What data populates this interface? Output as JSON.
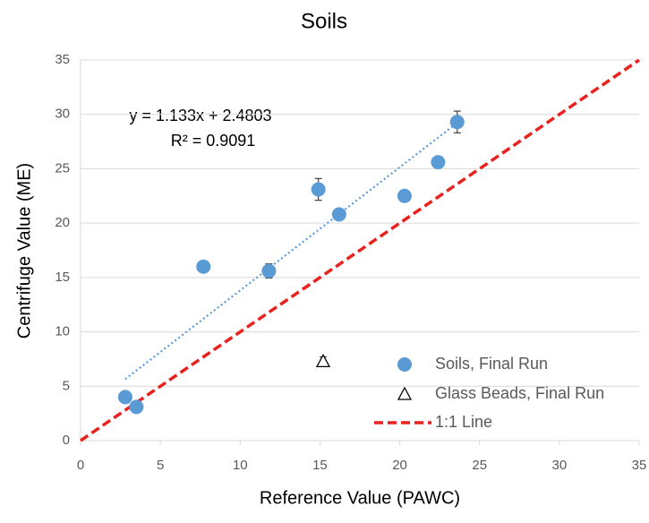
{
  "chart_data": {
    "type": "scatter",
    "title": "Soils",
    "xlabel": "Reference Value (PAWC)",
    "ylabel": "Centrifuge Value (ME)",
    "xlim": [
      0,
      35
    ],
    "xticks": [
      0,
      5,
      10,
      15,
      20,
      25,
      30,
      35
    ],
    "ylim": [
      0,
      35
    ],
    "yticks": [
      0,
      5,
      10,
      15,
      20,
      25,
      30,
      35
    ],
    "grid": true,
    "legend": "lower right",
    "series": [
      {
        "name": "Soils, Final Run",
        "color": "#5b9bd5",
        "marker": "circle",
        "x": [
          2.8,
          3.5,
          7.7,
          11.8,
          14.9,
          16.2,
          20.3,
          22.4,
          23.6
        ],
        "values": [
          4.0,
          3.1,
          16.0,
          15.6,
          23.1,
          20.8,
          22.5,
          25.6,
          29.3
        ],
        "errors": [
          null,
          null,
          null,
          0.65,
          1.0,
          null,
          null,
          null,
          1.0
        ]
      },
      {
        "name": "Glass Beads, Final Run",
        "color": "#000000",
        "marker": "triangle",
        "x": [
          15.2
        ],
        "values": [
          7.3
        ],
        "errors": [
          0.4
        ]
      }
    ],
    "trendline": {
      "slope": 1.133,
      "intercept": 2.4803,
      "color": "#5b9bd5",
      "label": "y = 1.133x + 2.4803",
      "r2_label": "R² = 0.9091"
    },
    "reference_line": {
      "name": "1:1 Line",
      "color": "#e8221f",
      "slope": 1
    }
  }
}
